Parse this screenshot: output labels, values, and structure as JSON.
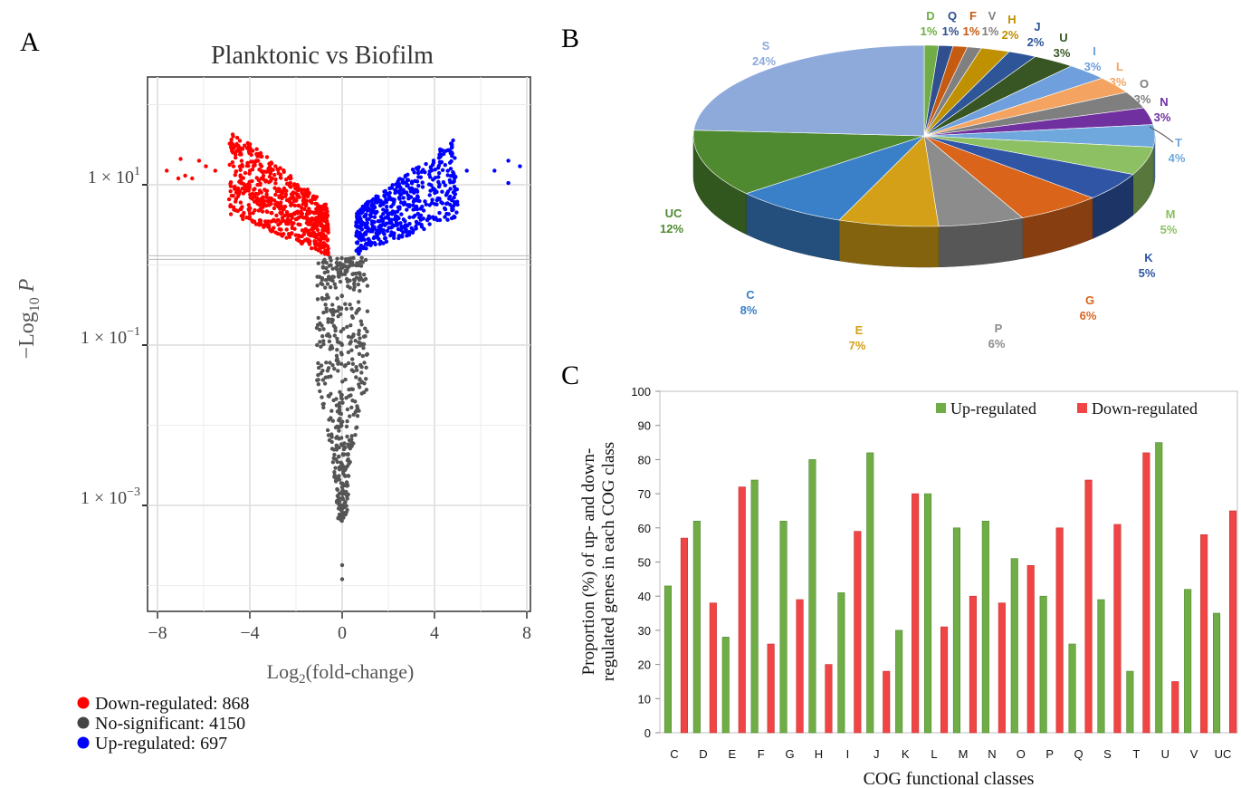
{
  "panels": {
    "a": "A",
    "b": "B",
    "c": "C"
  },
  "colors": {
    "up": "#0000ff",
    "down": "#ff0000",
    "ns": "#555555",
    "bar_up": "#70ad47",
    "bar_down": "#f04545"
  },
  "chart_data": [
    {
      "type": "scatter",
      "title": "Planktonic vs Biofilm",
      "xlabel_main": "Log",
      "xlabel_sub": "2",
      "xlabel_rest": "(fold-change)",
      "ylabel_main": "−Log",
      "ylabel_sub": "10",
      "ylabel_rest": " P",
      "xlim": [
        -8.2,
        8.2
      ],
      "y_scale": "log",
      "x_ticks": [
        -8,
        -4,
        0,
        4,
        8
      ],
      "x_tick_labels": [
        "−8",
        "−4",
        "0",
        "4",
        "8"
      ],
      "y_ticks": [
        {
          "value": 10,
          "label_base": "1 × 10",
          "label_exp": "1"
        },
        {
          "value": 0.1,
          "label_base": "1 × 10",
          "label_exp": "−1"
        },
        {
          "value": 0.001,
          "label_base": "1 × 10",
          "label_exp": "−3"
        }
      ],
      "significance_threshold": 1.3,
      "legend": [
        {
          "name": "Down-regulated",
          "count": "868",
          "text": "Down-regulated: 868",
          "color": "#ff0000"
        },
        {
          "name": "No-significant",
          "count": "4150",
          "text": "No-significant: 4150",
          "color": "#444444"
        },
        {
          "name": "Up-regulated",
          "count": "697",
          "text": "Up-regulated: 697",
          "color": "#0000ff"
        }
      ],
      "series": [
        {
          "name": "Down-regulated",
          "count": 868
        },
        {
          "name": "No-significant",
          "count": 4150
        },
        {
          "name": "Up-regulated",
          "count": 697
        }
      ]
    },
    {
      "type": "pie",
      "slices": [
        {
          "label": "D",
          "value": 1,
          "pct": "1%",
          "color": "#70ad47"
        },
        {
          "label": "Q",
          "value": 1,
          "pct": "1%",
          "color": "#2f4f8f"
        },
        {
          "label": "F",
          "value": 1,
          "pct": "1%",
          "color": "#c55a11"
        },
        {
          "label": "V",
          "value": 1,
          "pct": "1%",
          "color": "#808080"
        },
        {
          "label": "H",
          "value": 2,
          "pct": "2%",
          "color": "#bf9000"
        },
        {
          "label": "J",
          "value": 2,
          "pct": "2%",
          "color": "#2e5597"
        },
        {
          "label": "U",
          "value": 3,
          "pct": "3%",
          "color": "#375623"
        },
        {
          "label": "I",
          "value": 3,
          "pct": "3%",
          "color": "#6f9fdc"
        },
        {
          "label": "L",
          "value": 3,
          "pct": "3%",
          "color": "#f4a460"
        },
        {
          "label": "O",
          "value": 3,
          "pct": "3%",
          "color": "#7f7f7f"
        },
        {
          "label": "N",
          "value": 3,
          "pct": "3%",
          "color": "#7030a0"
        },
        {
          "label": "T",
          "value": 4,
          "pct": "4%",
          "color": "#6fa8dc"
        },
        {
          "label": "M",
          "value": 5,
          "pct": "5%",
          "color": "#8cc063"
        },
        {
          "label": "K",
          "value": 5,
          "pct": "5%",
          "color": "#2f55a4"
        },
        {
          "label": "G",
          "value": 6,
          "pct": "6%",
          "color": "#d9641a"
        },
        {
          "label": "P",
          "value": 6,
          "pct": "6%",
          "color": "#8c8c8c"
        },
        {
          "label": "E",
          "value": 7,
          "pct": "7%",
          "color": "#d4a017"
        },
        {
          "label": "C",
          "value": 8,
          "pct": "8%",
          "color": "#3a80c8"
        },
        {
          "label": "UC",
          "value": 12,
          "pct": "12%",
          "color": "#4f8a30"
        },
        {
          "label": "S",
          "value": 24,
          "pct": "24%",
          "color": "#8eaadb"
        }
      ]
    },
    {
      "type": "bar",
      "categories": [
        "C",
        "D",
        "E",
        "F",
        "G",
        "H",
        "I",
        "J",
        "K",
        "L",
        "M",
        "N",
        "O",
        "P",
        "Q",
        "S",
        "T",
        "U",
        "V",
        "UC"
      ],
      "series": [
        {
          "name": "Up-regulated",
          "color": "#70ad47",
          "values": [
            43,
            62,
            28,
            74,
            62,
            80,
            41,
            82,
            30,
            70,
            60,
            62,
            51,
            40,
            26,
            39,
            18,
            85,
            42,
            35
          ]
        },
        {
          "name": "Down-regulated",
          "color": "#f04545",
          "values": [
            57,
            38,
            72,
            26,
            39,
            20,
            59,
            18,
            70,
            31,
            40,
            38,
            49,
            60,
            74,
            61,
            82,
            15,
            58,
            65
          ]
        }
      ],
      "xlabel": "COG functional classes",
      "ylabel_line1": "Proportion (%) of up- and down-",
      "ylabel_line2": "regulated genes in each COG class",
      "ylim": [
        0,
        100
      ],
      "y_ticks": [
        "0",
        "10",
        "20",
        "30",
        "40",
        "50",
        "60",
        "70",
        "80",
        "90",
        "100"
      ],
      "legend_position": "top-right"
    }
  ]
}
